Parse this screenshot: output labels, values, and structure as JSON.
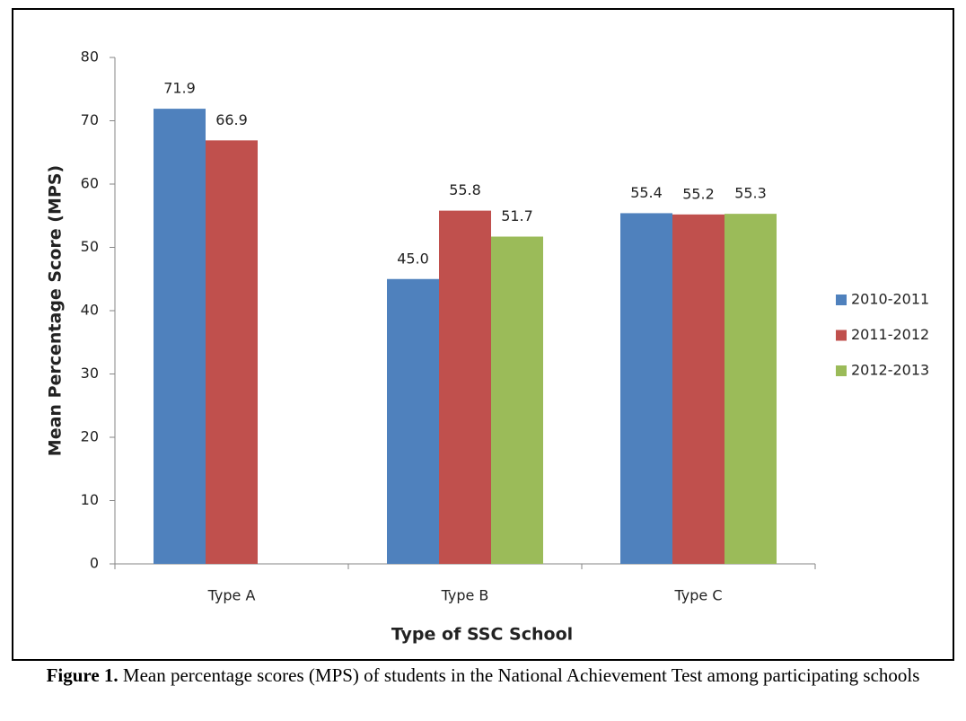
{
  "chart_data": {
    "type": "bar",
    "y_label": "Mean Percentage Score (MPS)",
    "x_label": "Type of SSC School",
    "categories": [
      "Type A",
      "Type B",
      "Type C"
    ],
    "series": [
      {
        "name": "2010-2011",
        "color": "#4f81bd",
        "values": [
          71.9,
          45.0,
          55.4
        ],
        "value_labels": [
          "71.9",
          "45.0",
          "55.4"
        ]
      },
      {
        "name": "2011-2012",
        "color": "#c0504d",
        "values": [
          66.9,
          55.8,
          55.2
        ],
        "value_labels": [
          "66.9",
          "55.8",
          "55.2"
        ]
      },
      {
        "name": "2012-2013",
        "color": "#9bbb59",
        "values": [
          null,
          51.7,
          55.3
        ],
        "value_labels": [
          null,
          "51.7",
          "55.3"
        ]
      }
    ],
    "ylim": [
      0,
      80
    ],
    "yticks": [
      0,
      10,
      20,
      30,
      40,
      50,
      60,
      70,
      80
    ],
    "legend": "right",
    "caption": {
      "label": "Figure 1.",
      "text": "Mean percentage scores (MPS) of students in the National Achievement Test among participating schools"
    }
  }
}
